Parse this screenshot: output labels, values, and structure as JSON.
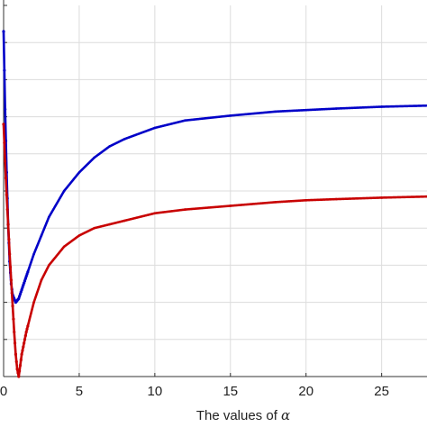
{
  "chart_data": {
    "type": "line",
    "title": "",
    "xlabel": "The values of ",
    "xlabel_symbol": "α",
    "ylabel": "",
    "xlim": [
      0,
      28
    ],
    "ylim": [
      0,
      1
    ],
    "x_ticks": [
      0,
      5,
      10,
      15,
      20,
      25
    ],
    "x_tick_labels": [
      "0",
      "5",
      "10",
      "15",
      "20",
      "25"
    ],
    "grid": true,
    "series": [
      {
        "color": "#0000c8",
        "x": [
          0,
          0.1,
          0.2,
          0.3,
          0.4,
          0.5,
          0.6,
          0.8,
          1,
          1.25,
          1.5,
          2,
          2.5,
          3,
          4,
          5,
          6,
          7,
          8,
          10,
          12,
          15,
          18,
          20,
          22,
          25,
          28
        ],
        "y": [
          0.93,
          0.72,
          0.55,
          0.41,
          0.31,
          0.25,
          0.22,
          0.2,
          0.21,
          0.24,
          0.27,
          0.33,
          0.38,
          0.43,
          0.5,
          0.55,
          0.59,
          0.62,
          0.64,
          0.67,
          0.69,
          0.703,
          0.714,
          0.718,
          0.722,
          0.727,
          0.73
        ]
      },
      {
        "color": "#c80000",
        "x": [
          0,
          0.1,
          0.2,
          0.3,
          0.4,
          0.5,
          0.6,
          0.7,
          0.8,
          0.9,
          1,
          1.2,
          1.5,
          2,
          2.5,
          3,
          4,
          5,
          6,
          7,
          8,
          10,
          12,
          15,
          18,
          20,
          22,
          25,
          28
        ],
        "y": [
          0.68,
          0.58,
          0.49,
          0.41,
          0.33,
          0.26,
          0.19,
          0.12,
          0.06,
          0.02,
          0.0,
          0.06,
          0.12,
          0.2,
          0.26,
          0.3,
          0.35,
          0.38,
          0.4,
          0.41,
          0.42,
          0.44,
          0.45,
          0.46,
          0.47,
          0.475,
          0.478,
          0.482,
          0.485
        ]
      }
    ]
  }
}
